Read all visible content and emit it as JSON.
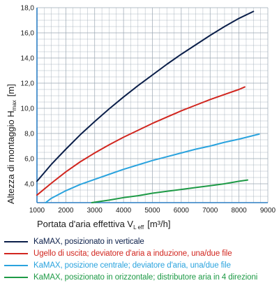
{
  "chart_data": {
    "type": "line",
    "xlabel_main": "Portata d'aria effettiva V",
    "xlabel_sub": "L eff",
    "xlabel_unit": "[m³/h]",
    "ylabel_main": "Altezza di montaggio H",
    "ylabel_sub": "max",
    "ylabel_unit": "[m]",
    "xlim": [
      1000,
      9000
    ],
    "ylim": [
      2.5,
      18.0
    ],
    "x_ticks": [
      1000,
      2000,
      3000,
      4000,
      5000,
      6000,
      7000,
      8000,
      9000
    ],
    "x_tick_labels": [
      "1000",
      "2000",
      "3000",
      "4000",
      "5000",
      "6000",
      "7000",
      "8000",
      "9000"
    ],
    "y_ticks": [
      4.0,
      6.0,
      8.0,
      10.0,
      12.0,
      14.0,
      16.0,
      18.0
    ],
    "y_tick_labels": [
      "4,0",
      "6,0",
      "8,0",
      "10,0",
      "12,0",
      "14,0",
      "16,0",
      "18,0"
    ],
    "grid": true,
    "axis_color": "#2b7fc4",
    "grid_color": "#9aa6b2",
    "series": [
      {
        "name": "KaMAX, posizionato in verticale",
        "color": "#0b1f4a",
        "x": [
          1000,
          1500,
          2000,
          2500,
          3000,
          3500,
          4000,
          4500,
          5000,
          5500,
          6000,
          6500,
          7000,
          7500,
          8000,
          8500
        ],
        "y": [
          4.2,
          5.55,
          6.75,
          7.9,
          8.95,
          9.95,
          10.9,
          11.8,
          12.65,
          13.5,
          14.3,
          15.05,
          15.8,
          16.5,
          17.15,
          17.7
        ]
      },
      {
        "name": "Ugello di uscita; deviatore d'aria a induzione, una/due file",
        "color": "#d1261f",
        "x": [
          1000,
          1500,
          2000,
          2500,
          3000,
          3500,
          4000,
          4500,
          5000,
          5500,
          6000,
          6500,
          7000,
          7500,
          8000,
          8200
        ],
        "y": [
          3.1,
          4.05,
          4.95,
          5.75,
          6.45,
          7.1,
          7.7,
          8.25,
          8.8,
          9.3,
          9.8,
          10.25,
          10.7,
          11.1,
          11.5,
          11.7
        ]
      },
      {
        "name": "KaMAX, posizione centrale; deviatore d'aria, una/due file",
        "color": "#2aa3de",
        "x": [
          1300,
          1500,
          2000,
          2500,
          3000,
          3500,
          4000,
          4500,
          5000,
          5500,
          6000,
          6500,
          7000,
          7500,
          8000,
          8700
        ],
        "y": [
          2.5,
          2.85,
          3.45,
          3.95,
          4.35,
          4.75,
          5.15,
          5.5,
          5.85,
          6.15,
          6.45,
          6.75,
          7.0,
          7.3,
          7.55,
          7.95
        ]
      },
      {
        "name": "KaMAX, posizionato in orizzontale; distributore aria in 4 direzioni",
        "color": "#1e9a46",
        "x": [
          2900,
          3500,
          4000,
          4500,
          5000,
          5500,
          6000,
          6500,
          7000,
          7500,
          8000,
          8300
        ],
        "y": [
          2.5,
          2.7,
          2.9,
          3.05,
          3.25,
          3.4,
          3.55,
          3.7,
          3.85,
          4.0,
          4.2,
          4.3
        ]
      }
    ]
  }
}
